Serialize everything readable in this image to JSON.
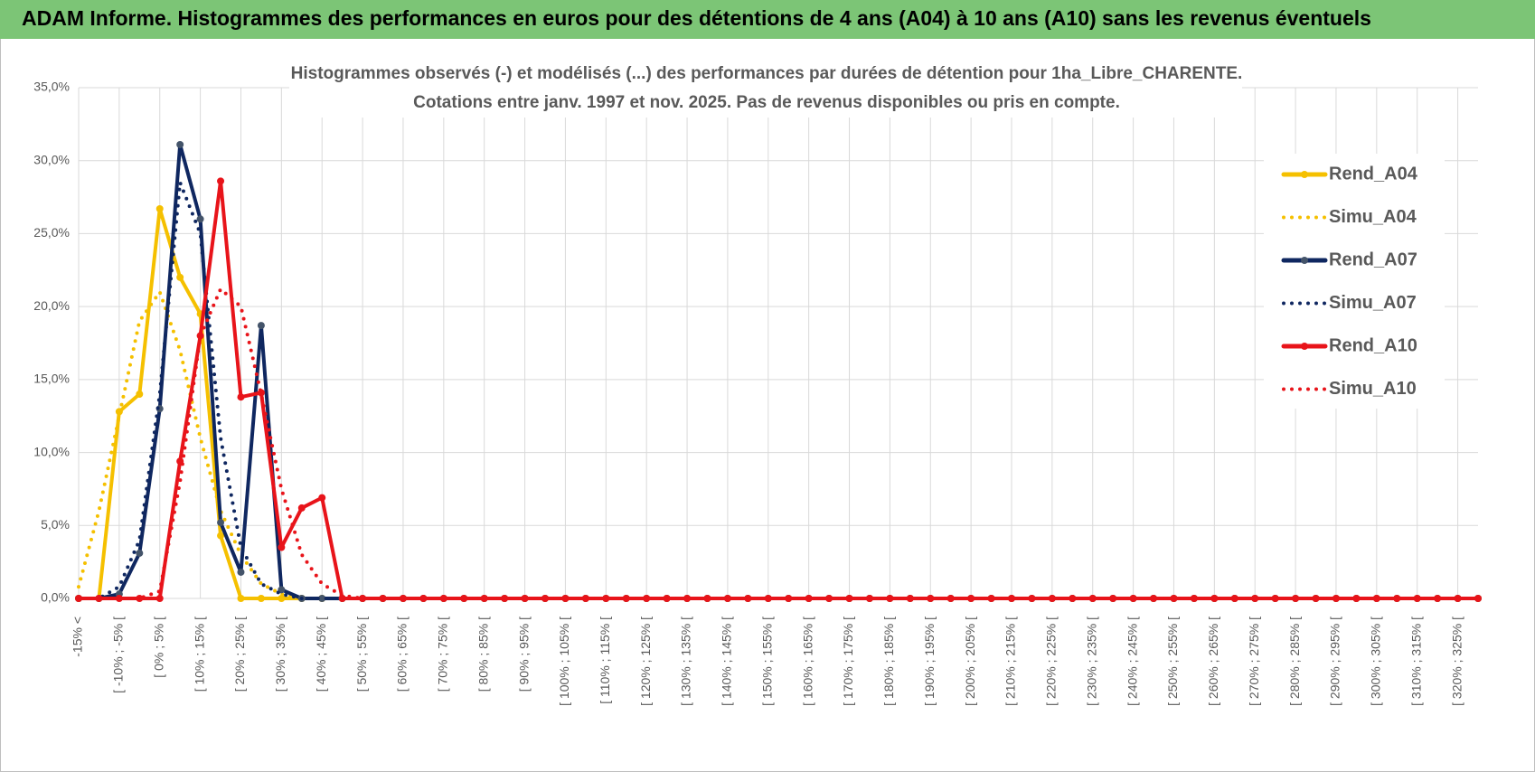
{
  "header": {
    "title": "ADAM Informe. Histogrammes des performances en euros pour des détentions de 4 ans (A04) à 10 ans (A10) sans les revenus éventuels"
  },
  "chart_data": {
    "type": "line",
    "title": "Histogrammes observés (-) et modélisés (...) des performances par durées de détention pour 1ha_Libre_CHARENTE.",
    "subtitle": "Cotations entre janv. 1997 et nov. 2025. Pas de revenus disponibles ou pris en compte.",
    "categories": [
      "-15% <",
      null,
      "[ -10% ; -5% [",
      null,
      "[ 0% ; 5% [",
      null,
      "[ 10% ; 15% [",
      null,
      "[ 20% ; 25% [",
      null,
      "[ 30% ; 35% [",
      null,
      "[ 40% ; 45% [",
      null,
      "[ 50% ; 55% [",
      null,
      "[ 60% ; 65% [",
      null,
      "[ 70% ; 75% [",
      null,
      "[ 80% ; 85% [",
      null,
      "[ 90% ; 95% [",
      null,
      "[ 100% ; 105% [",
      null,
      "[ 110% ; 115% [",
      null,
      "[ 120% ; 125% [",
      null,
      "[ 130% ; 135% [",
      null,
      "[ 140% ; 145% [",
      null,
      "[ 150% ; 155% [",
      null,
      "[ 160% ; 165% [",
      null,
      "[ 170% ; 175% [",
      null,
      "[ 180% ; 185% [",
      null,
      "[ 190% ; 195% [",
      null,
      "[ 200% ; 205% [",
      null,
      "[ 210% ; 215% [",
      null,
      "[ 220% ; 225% [",
      null,
      "[ 230% ; 235% [",
      null,
      "[ 240% ; 245% [",
      null,
      "[ 250% ; 255% [",
      null,
      "[ 260% ; 265% [",
      null,
      "[ 270% ; 275% [",
      null,
      "[ 280% ; 285% [",
      null,
      "[ 290% ; 295% [",
      null,
      "[ 300% ; 305% [",
      null,
      "[ 310% ; 315% [",
      null,
      "[ 320% ; 325% [",
      null
    ],
    "series": [
      {
        "name": "Rend_A04",
        "color": "#f5c000",
        "style": "solid",
        "markers": true,
        "values": [
          0,
          0,
          12.8,
          14,
          26.7,
          22,
          19.5,
          4.3,
          0,
          0,
          0,
          0,
          0,
          0,
          0,
          0,
          0,
          0,
          0,
          0,
          0,
          0,
          0,
          0,
          0,
          0,
          0,
          0,
          0,
          0,
          0,
          0,
          0,
          0,
          0,
          0,
          0,
          0,
          0,
          0,
          0,
          0,
          0,
          0,
          0,
          0,
          0,
          0,
          0,
          0,
          0,
          0,
          0,
          0,
          0,
          0,
          0,
          0,
          0,
          0,
          0,
          0,
          0,
          0,
          0,
          0,
          0,
          0,
          0,
          0
        ]
      },
      {
        "name": "Simu_A04",
        "color": "#f5c000",
        "style": "dotted",
        "markers": false,
        "values": [
          0.8,
          6,
          12.5,
          19,
          21,
          17,
          11,
          6,
          3,
          1,
          0.3,
          0,
          0,
          0,
          0,
          0,
          0,
          0,
          0,
          0,
          0,
          0,
          0,
          0,
          0,
          0,
          0,
          0,
          0,
          0,
          0,
          0,
          0,
          0,
          0,
          0,
          0,
          0,
          0,
          0,
          0,
          0,
          0,
          0,
          0,
          0,
          0,
          0,
          0,
          0,
          0,
          0,
          0,
          0,
          0,
          0,
          0,
          0,
          0,
          0,
          0,
          0,
          0,
          0,
          0,
          0,
          0,
          0,
          0,
          0
        ]
      },
      {
        "name": "Rend_A07",
        "color": "#0f2760",
        "style": "solid",
        "markers": true,
        "values": [
          0,
          0,
          0.3,
          3.1,
          13,
          31.1,
          26,
          5.2,
          1.8,
          18.7,
          0.6,
          0,
          0,
          0,
          0,
          0,
          0,
          0,
          0,
          0,
          0,
          0,
          0,
          0,
          0,
          0,
          0,
          0,
          0,
          0,
          0,
          0,
          0,
          0,
          0,
          0,
          0,
          0,
          0,
          0,
          0,
          0,
          0,
          0,
          0,
          0,
          0,
          0,
          0,
          0,
          0,
          0,
          0,
          0,
          0,
          0,
          0,
          0,
          0,
          0,
          0,
          0,
          0,
          0,
          0,
          0,
          0,
          0,
          0,
          0
        ]
      },
      {
        "name": "Simu_A07",
        "color": "#0f2760",
        "style": "dotted",
        "markers": false,
        "values": [
          0,
          0,
          0.8,
          4,
          14,
          28.5,
          25,
          11,
          3.5,
          1,
          0.3,
          0,
          0,
          0,
          0,
          0,
          0,
          0,
          0,
          0,
          0,
          0,
          0,
          0,
          0,
          0,
          0,
          0,
          0,
          0,
          0,
          0,
          0,
          0,
          0,
          0,
          0,
          0,
          0,
          0,
          0,
          0,
          0,
          0,
          0,
          0,
          0,
          0,
          0,
          0,
          0,
          0,
          0,
          0,
          0,
          0,
          0,
          0,
          0,
          0,
          0,
          0,
          0,
          0,
          0,
          0,
          0,
          0,
          0,
          0
        ]
      },
      {
        "name": "Rend_A10",
        "color": "#e8141a",
        "style": "solid",
        "markers": true,
        "values": [
          0,
          0,
          0,
          0,
          0,
          9.4,
          18,
          28.6,
          13.8,
          14.1,
          3.5,
          6.2,
          6.9,
          0,
          0,
          0,
          0,
          0,
          0,
          0,
          0,
          0,
          0,
          0,
          0,
          0,
          0,
          0,
          0,
          0,
          0,
          0,
          0,
          0,
          0,
          0,
          0,
          0,
          0,
          0,
          0,
          0,
          0,
          0,
          0,
          0,
          0,
          0,
          0,
          0,
          0,
          0,
          0,
          0,
          0,
          0,
          0,
          0,
          0,
          0,
          0,
          0,
          0,
          0,
          0,
          0,
          0,
          0,
          0,
          0
        ]
      },
      {
        "name": "Simu_A10",
        "color": "#e8141a",
        "style": "dotted",
        "markers": false,
        "values": [
          0,
          0,
          0,
          0,
          0.5,
          8,
          18,
          21.2,
          20,
          14,
          7.5,
          3,
          1,
          0.2,
          0,
          0,
          0,
          0,
          0,
          0,
          0,
          0,
          0,
          0,
          0,
          0,
          0,
          0,
          0,
          0,
          0,
          0,
          0,
          0,
          0,
          0,
          0,
          0,
          0,
          0,
          0,
          0,
          0,
          0,
          0,
          0,
          0,
          0,
          0,
          0,
          0,
          0,
          0,
          0,
          0,
          0,
          0,
          0,
          0,
          0,
          0,
          0,
          0,
          0,
          0,
          0,
          0,
          0,
          0,
          0
        ]
      }
    ],
    "ylim": [
      0,
      35
    ],
    "yticks": [
      {
        "value": 0,
        "label": "0,0%"
      },
      {
        "value": 5,
        "label": "5,0%"
      },
      {
        "value": 10,
        "label": "10,0%"
      },
      {
        "value": 15,
        "label": "15,0%"
      },
      {
        "value": 20,
        "label": "20,0%"
      },
      {
        "value": 25,
        "label": "25,0%"
      },
      {
        "value": 30,
        "label": "30,0%"
      },
      {
        "value": 35,
        "label": "35,0%"
      }
    ],
    "grid": true,
    "legend": "right"
  }
}
